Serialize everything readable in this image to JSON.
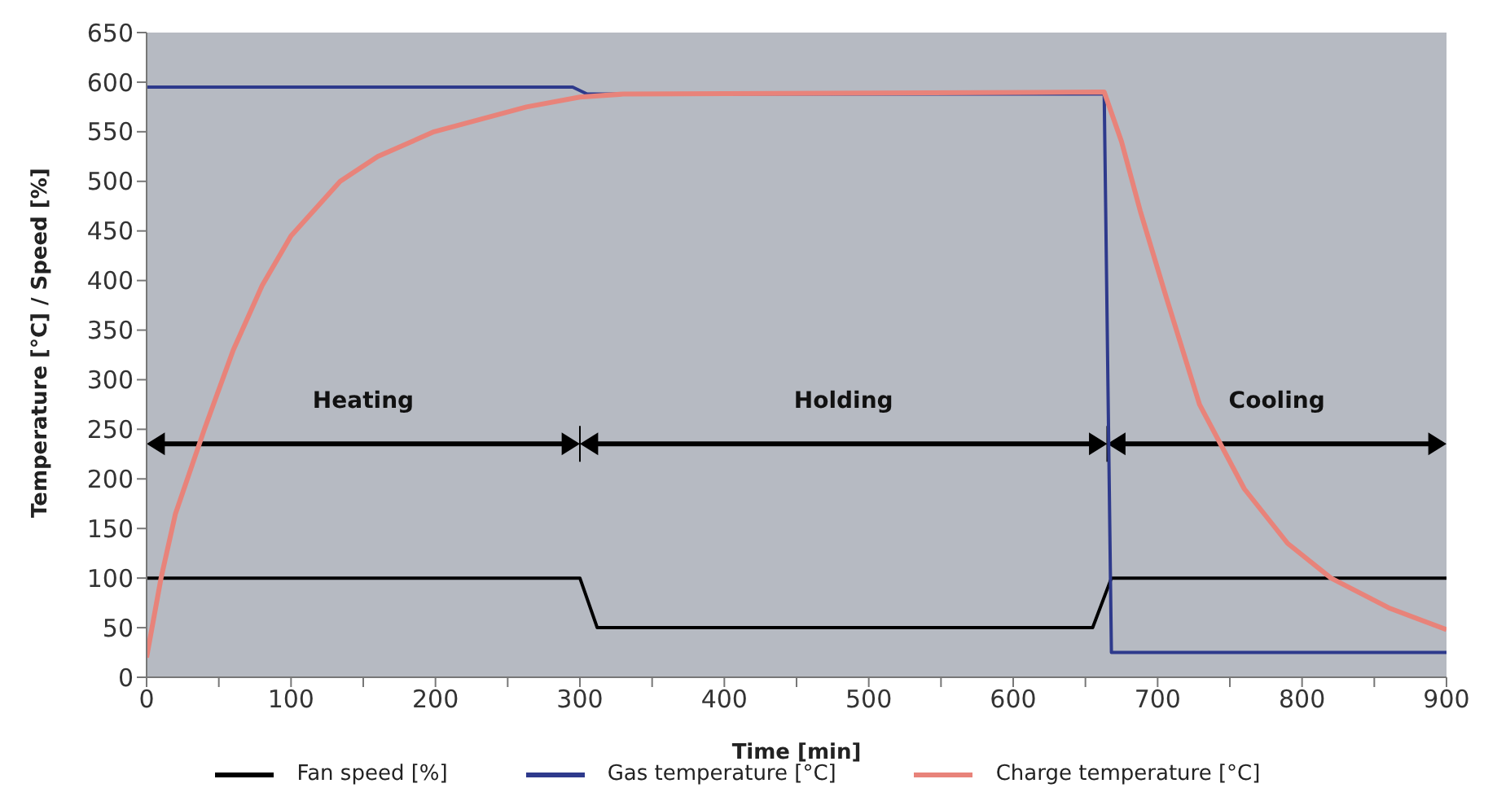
{
  "chart_data": {
    "type": "line",
    "xlabel": "Time [min]",
    "ylabel": "Temperature [°C] / Speed [%]",
    "xlim": [
      0,
      900
    ],
    "ylim": [
      0,
      650
    ],
    "xticks": [
      0,
      {
        "value": 50,
        "label": null
      },
      100,
      {
        "value": 150,
        "label": null
      },
      200,
      {
        "value": 250,
        "label": null
      },
      300,
      {
        "value": 350,
        "label": null
      },
      400,
      {
        "value": 450,
        "label": null
      },
      500,
      {
        "value": 550,
        "label": null
      },
      600,
      {
        "value": 650,
        "label": null
      },
      700,
      {
        "value": 750,
        "label": null
      },
      800,
      {
        "value": 850,
        "label": null
      },
      900
    ],
    "yticks": [
      0,
      50,
      100,
      150,
      200,
      250,
      300,
      350,
      400,
      450,
      500,
      550,
      600,
      650
    ],
    "grid": false,
    "legend": "bottom",
    "marker": "none",
    "line_style": "solid",
    "series": [
      {
        "name": "Fan speed [%]",
        "color": "#000000",
        "x": [
          0,
          300,
          312,
          655,
          668,
          900
        ],
        "values": [
          100,
          100,
          50,
          50,
          100,
          100
        ]
      },
      {
        "name": "Gas temperature [°C]",
        "color": "#2e3a8c",
        "x": [
          0,
          295,
          305,
          663,
          668,
          900
        ],
        "values": [
          595,
          595,
          588,
          588,
          25,
          25
        ]
      },
      {
        "name": "Charge temperature [°C]",
        "color": "#e8837a",
        "x": [
          0,
          10,
          20,
          40,
          60,
          80,
          100,
          134,
          160,
          199,
          263,
          300,
          330,
          663,
          675,
          688,
          706,
          729,
          760,
          790,
          820,
          860,
          900
        ],
        "values": [
          20,
          100,
          165,
          250,
          330,
          395,
          445,
          500,
          525,
          550,
          575,
          585,
          588,
          590,
          540,
          470,
          383,
          275,
          190,
          135,
          100,
          70,
          48
        ]
      }
    ],
    "annotations": [
      "Heating",
      "Holding",
      "Cooling"
    ]
  }
}
